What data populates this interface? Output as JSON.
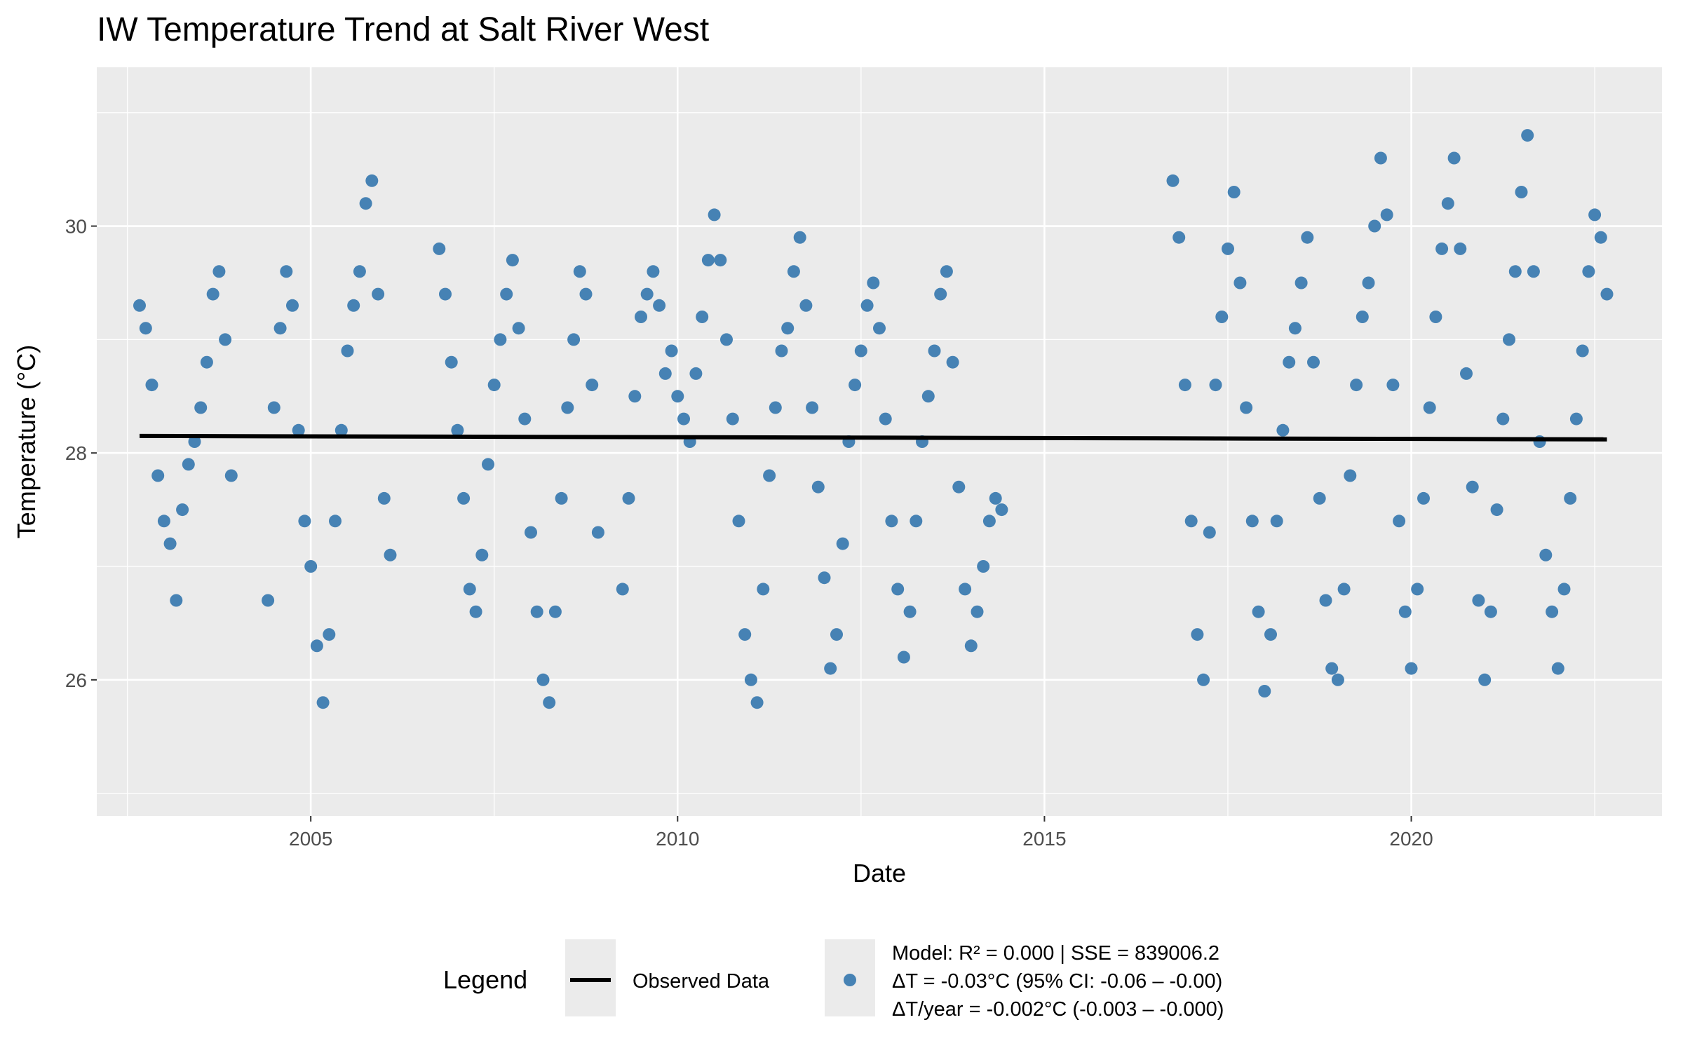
{
  "chart_data": {
    "type": "scatter",
    "title": "IW Temperature Trend at Salt River West",
    "xlabel": "Date",
    "ylabel": "Temperature (°C)",
    "x_axis_type": "date",
    "xlim": [
      "2002-02-01",
      "2023-06-01"
    ],
    "ylim": [
      24.8,
      31.4
    ],
    "x_ticks": [
      "2005",
      "2010",
      "2015",
      "2020"
    ],
    "y_ticks": [
      "26",
      "28",
      "30"
    ],
    "grid": true,
    "background": "#ebebeb",
    "legend_placement": "bottom",
    "colors": {
      "points": "#4682b4",
      "trend_line": "#000000"
    },
    "legend": {
      "title": "Legend",
      "line_label": "Observed Data",
      "point_label_lines": [
        "Model: R² = 0.000 | SSE = 839006.2",
        "ΔT = -0.03°C (95% CI: -0.06 – -0.00)",
        "ΔT/year = -0.002°C (-0.003 – -0.000)"
      ]
    },
    "trend_line": {
      "x": [
        "2002-09-01",
        "2022-09-01"
      ],
      "y": [
        28.15,
        28.12
      ]
    },
    "series": [
      {
        "name": "Observed Data",
        "kind": "points",
        "x": [
          "2002-09",
          "2002-10",
          "2002-11",
          "2002-12",
          "2003-01",
          "2003-02",
          "2003-03",
          "2003-04",
          "2003-05",
          "2003-06",
          "2003-07",
          "2003-08",
          "2003-09",
          "2003-10",
          "2003-11",
          "2003-12",
          "2004-06",
          "2004-07",
          "2004-08",
          "2004-09",
          "2004-10",
          "2004-11",
          "2004-12",
          "2005-01",
          "2005-02",
          "2005-03",
          "2005-04",
          "2005-05",
          "2005-06",
          "2005-07",
          "2005-08",
          "2005-09",
          "2005-10",
          "2005-11",
          "2005-12",
          "2006-01",
          "2006-02",
          "2006-10",
          "2006-11",
          "2006-12",
          "2007-01",
          "2007-02",
          "2007-03",
          "2007-04",
          "2007-05",
          "2007-06",
          "2007-07",
          "2007-08",
          "2007-09",
          "2007-10",
          "2007-11",
          "2007-12",
          "2008-01",
          "2008-02",
          "2008-03",
          "2008-04",
          "2008-05",
          "2008-06",
          "2008-07",
          "2008-08",
          "2008-09",
          "2008-10",
          "2008-11",
          "2008-12",
          "2009-04",
          "2009-05",
          "2009-06",
          "2009-07",
          "2009-08",
          "2009-09",
          "2009-10",
          "2009-11",
          "2009-12",
          "2010-01",
          "2010-02",
          "2010-03",
          "2010-04",
          "2010-05",
          "2010-06",
          "2010-07",
          "2010-08",
          "2010-09",
          "2010-10",
          "2010-11",
          "2010-12",
          "2011-01",
          "2011-02",
          "2011-03",
          "2011-04",
          "2011-05",
          "2011-06",
          "2011-07",
          "2011-08",
          "2011-09",
          "2011-10",
          "2011-11",
          "2011-12",
          "2012-01",
          "2012-02",
          "2012-03",
          "2012-04",
          "2012-05",
          "2012-06",
          "2012-07",
          "2012-08",
          "2012-09",
          "2012-10",
          "2012-11",
          "2012-12",
          "2013-01",
          "2013-02",
          "2013-03",
          "2013-04",
          "2013-05",
          "2013-06",
          "2013-07",
          "2013-08",
          "2013-09",
          "2013-10",
          "2013-11",
          "2013-12",
          "2014-01",
          "2014-02",
          "2014-03",
          "2014-04",
          "2014-05",
          "2014-06",
          "2016-10",
          "2016-11",
          "2016-12",
          "2017-01",
          "2017-02",
          "2017-03",
          "2017-04",
          "2017-05",
          "2017-06",
          "2017-07",
          "2017-08",
          "2017-09",
          "2017-10",
          "2017-11",
          "2017-12",
          "2018-01",
          "2018-02",
          "2018-03",
          "2018-04",
          "2018-05",
          "2018-06",
          "2018-07",
          "2018-08",
          "2018-09",
          "2018-10",
          "2018-11",
          "2018-12",
          "2019-01",
          "2019-02",
          "2019-03",
          "2019-04",
          "2019-05",
          "2019-06",
          "2019-07",
          "2019-08",
          "2019-09",
          "2019-10",
          "2019-11",
          "2019-12",
          "2020-01",
          "2020-02",
          "2020-03",
          "2020-04",
          "2020-05",
          "2020-06",
          "2020-07",
          "2020-08",
          "2020-09",
          "2020-10",
          "2020-11",
          "2020-12",
          "2021-01",
          "2021-02",
          "2021-03",
          "2021-04",
          "2021-05",
          "2021-06",
          "2021-07",
          "2021-08",
          "2021-09",
          "2021-10",
          "2021-11",
          "2021-12",
          "2022-01",
          "2022-02",
          "2022-03",
          "2022-04",
          "2022-05",
          "2022-06",
          "2022-07",
          "2022-08",
          "2022-09"
        ],
        "y": [
          29.3,
          29.1,
          28.6,
          27.8,
          27.4,
          27.2,
          26.7,
          27.5,
          27.9,
          28.1,
          28.4,
          28.8,
          29.4,
          29.6,
          29.0,
          27.8,
          26.7,
          28.4,
          29.1,
          29.6,
          29.3,
          28.2,
          27.4,
          27.0,
          26.3,
          25.8,
          26.4,
          27.4,
          28.2,
          28.9,
          29.3,
          29.6,
          30.2,
          30.4,
          29.4,
          27.6,
          27.1,
          29.8,
          29.4,
          28.8,
          28.2,
          27.6,
          26.8,
          26.6,
          27.1,
          27.9,
          28.6,
          29.0,
          29.4,
          29.7,
          29.1,
          28.3,
          27.3,
          26.6,
          26.0,
          25.8,
          26.6,
          27.6,
          28.4,
          29.0,
          29.6,
          29.4,
          28.6,
          27.3,
          26.8,
          27.6,
          28.5,
          29.2,
          29.4,
          29.6,
          29.3,
          28.7,
          28.9,
          28.5,
          28.3,
          28.1,
          28.7,
          29.2,
          29.7,
          30.1,
          29.7,
          29.0,
          28.3,
          27.4,
          26.4,
          26.0,
          25.8,
          26.8,
          27.8,
          28.4,
          28.9,
          29.1,
          29.6,
          29.9,
          29.3,
          28.4,
          27.7,
          26.9,
          26.1,
          26.4,
          27.2,
          28.1,
          28.6,
          28.9,
          29.3,
          29.5,
          29.1,
          28.3,
          27.4,
          26.8,
          26.2,
          26.6,
          27.4,
          28.1,
          28.5,
          28.9,
          29.4,
          29.6,
          28.8,
          27.7,
          26.8,
          26.3,
          26.6,
          27.0,
          27.4,
          27.6,
          27.5,
          30.4,
          29.9,
          28.6,
          27.4,
          26.4,
          26.0,
          27.3,
          28.6,
          29.2,
          29.8,
          30.3,
          29.5,
          28.4,
          27.4,
          26.6,
          25.9,
          26.4,
          27.4,
          28.2,
          28.8,
          29.1,
          29.5,
          29.9,
          28.8,
          27.6,
          26.7,
          26.1,
          26.0,
          26.8,
          27.8,
          28.6,
          29.2,
          29.5,
          30.0,
          30.6,
          30.1,
          28.6,
          27.4,
          26.6,
          26.1,
          26.8,
          27.6,
          28.4,
          29.2,
          29.8,
          30.2,
          30.6,
          29.8,
          28.7,
          27.7,
          26.7,
          26.0,
          26.6,
          27.5,
          28.3,
          29.0,
          29.6,
          30.3,
          30.8,
          29.6,
          28.1,
          27.1,
          26.6,
          26.1,
          26.8,
          27.6,
          28.3,
          28.9,
          29.6,
          30.1,
          29.9,
          29.4
        ]
      }
    ]
  }
}
